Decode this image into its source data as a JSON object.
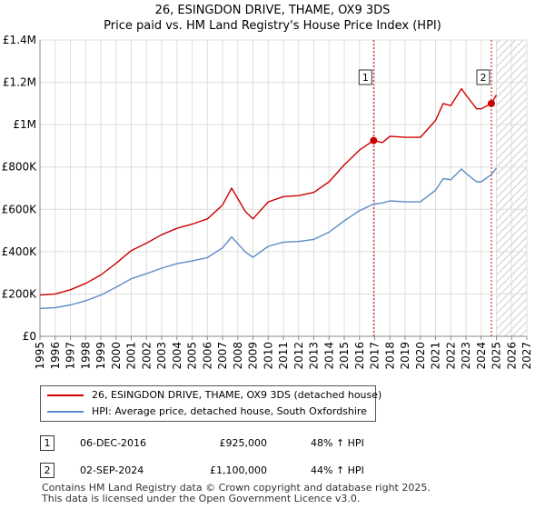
{
  "title": "26, ESINGDON DRIVE, THAME, OX9 3DS",
  "subtitle": "Price paid vs. HM Land Registry's House Price Index (HPI)",
  "colors": {
    "property": "#cc0000",
    "hpi": "#5b8cc8",
    "marker_line": "#cc0000",
    "future_hatch": "#bbbbbb"
  },
  "legend": {
    "property": "26, ESINGDON DRIVE, THAME, OX9 3DS (detached house)",
    "hpi": "HPI: Average price, detached house, South Oxfordshire"
  },
  "transactions": [
    {
      "num": "1",
      "date": "06-DEC-2016",
      "price": "£925,000",
      "change": "48% ↑ HPI"
    },
    {
      "num": "2",
      "date": "02-SEP-2024",
      "price": "£1,100,000",
      "change": "44% ↑ HPI"
    }
  ],
  "footer": {
    "line1": "Contains HM Land Registry data © Crown copyright and database right 2025.",
    "line2": "This data is licensed under the Open Government Licence v3.0."
  },
  "chart_data": {
    "type": "line",
    "x_label": "",
    "y_label": "",
    "xlim": [
      1995,
      2027
    ],
    "ylim": [
      0,
      1400000
    ],
    "x_ticks": [
      "1995",
      "1996",
      "1997",
      "1998",
      "1999",
      "2000",
      "2001",
      "2002",
      "2003",
      "2004",
      "2005",
      "2006",
      "2007",
      "2008",
      "2009",
      "2010",
      "2011",
      "2012",
      "2013",
      "2014",
      "2015",
      "2016",
      "2017",
      "2018",
      "2019",
      "2020",
      "2021",
      "2022",
      "2023",
      "2024",
      "2025",
      "2026",
      "2027"
    ],
    "y_ticks": [
      {
        "value": 0,
        "label": "£0"
      },
      {
        "value": 200000,
        "label": "£200K"
      },
      {
        "value": 400000,
        "label": "£400K"
      },
      {
        "value": 600000,
        "label": "£600K"
      },
      {
        "value": 800000,
        "label": "£800K"
      },
      {
        "value": 1000000,
        "label": "£1M"
      },
      {
        "value": 1200000,
        "label": "£1.2M"
      },
      {
        "value": 1400000,
        "label": "£1.4M"
      }
    ],
    "grid": true,
    "future_hatch_from": 2025.0,
    "series": [
      {
        "name": "26, ESINGDON DRIVE, THAME, OX9 3DS (detached house)",
        "x": [
          1995,
          1996,
          1997,
          1998,
          1999,
          2000,
          2001,
          2002,
          2003,
          2004,
          2005,
          2006,
          2007,
          2007.6,
          2008.5,
          2009,
          2010,
          2011,
          2012,
          2013,
          2014,
          2015,
          2016,
          2016.93,
          2017.5,
          2018,
          2019,
          2020,
          2021,
          2021.5,
          2022,
          2022.7,
          2023,
          2023.7,
          2024,
          2024.67,
          2025.0
        ],
        "y": [
          195000,
          200000,
          220000,
          250000,
          290000,
          345000,
          405000,
          440000,
          480000,
          510000,
          530000,
          555000,
          620000,
          700000,
          590000,
          555000,
          635000,
          660000,
          665000,
          680000,
          730000,
          810000,
          880000,
          925000,
          915000,
          945000,
          940000,
          940000,
          1020000,
          1100000,
          1090000,
          1170000,
          1140000,
          1075000,
          1075000,
          1100000,
          1140000
        ]
      },
      {
        "name": "HPI: Average price, detached house, South Oxfordshire",
        "x": [
          1995,
          1996,
          1997,
          1998,
          1999,
          2000,
          2001,
          2002,
          2003,
          2004,
          2005,
          2006,
          2007,
          2007.6,
          2008.5,
          2009,
          2010,
          2011,
          2012,
          2013,
          2014,
          2015,
          2016,
          2016.93,
          2017.5,
          2018,
          2019,
          2020,
          2021,
          2021.5,
          2022,
          2022.7,
          2023,
          2023.7,
          2024,
          2024.67,
          2025.0
        ],
        "y": [
          132000,
          135000,
          148000,
          168000,
          195000,
          232000,
          272000,
          296000,
          322000,
          343000,
          356000,
          372000,
          418000,
          470000,
          398000,
          373000,
          425000,
          445000,
          448000,
          458000,
          492000,
          546000,
          594000,
          625000,
          630000,
          640000,
          635000,
          635000,
          690000,
          745000,
          740000,
          790000,
          770000,
          730000,
          730000,
          764000,
          795000
        ]
      }
    ],
    "markers": [
      {
        "label": "1",
        "x": 2016.93,
        "y": 925000
      },
      {
        "label": "2",
        "x": 2024.67,
        "y": 1100000
      }
    ]
  }
}
